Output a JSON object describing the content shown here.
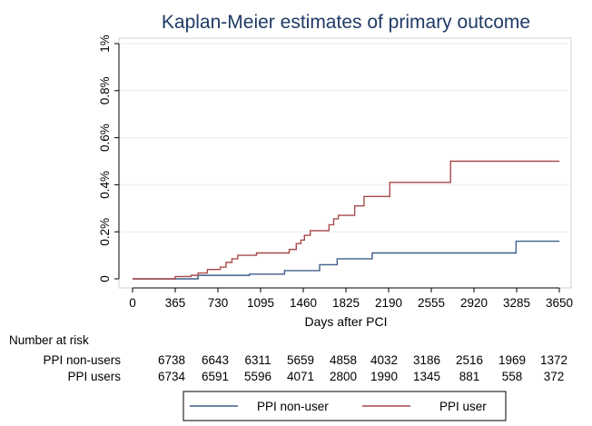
{
  "chart_data": {
    "type": "line",
    "title": "Kaplan-Meier estimates of primary outcome",
    "xlabel": "Days after PCI",
    "ylabel": "",
    "xlim": [
      0,
      3650
    ],
    "ylim": [
      0,
      1
    ],
    "x_ticks": [
      0,
      365,
      730,
      1095,
      1460,
      1825,
      2190,
      2555,
      2920,
      3285,
      3650
    ],
    "x_tick_labels": [
      "0",
      "365",
      "730",
      "1095",
      "1460",
      "1825",
      "2190",
      "2555",
      "2920",
      "3285",
      "3650"
    ],
    "y_ticks": [
      0,
      0.2,
      0.4,
      0.6,
      0.8,
      1.0
    ],
    "y_tick_labels": [
      "0",
      "0.2%",
      "0.4%",
      "0.6%",
      "0.8%",
      "1%"
    ],
    "grid": true,
    "series": [
      {
        "name": "PPI non-user",
        "color": "#3f5f8c",
        "steps": [
          [
            0,
            0
          ],
          [
            560,
            0.015
          ],
          [
            1000,
            0.02
          ],
          [
            1300,
            0.035
          ],
          [
            1600,
            0.06
          ],
          [
            1750,
            0.085
          ],
          [
            2050,
            0.11
          ],
          [
            3280,
            0.16
          ],
          [
            3650,
            0.16
          ]
        ]
      },
      {
        "name": "PPI user",
        "color": "#a84a4a",
        "steps": [
          [
            0,
            0
          ],
          [
            365,
            0.01
          ],
          [
            500,
            0.015
          ],
          [
            560,
            0.025
          ],
          [
            640,
            0.04
          ],
          [
            750,
            0.05
          ],
          [
            800,
            0.07
          ],
          [
            850,
            0.085
          ],
          [
            900,
            0.1
          ],
          [
            1060,
            0.11
          ],
          [
            1340,
            0.125
          ],
          [
            1400,
            0.15
          ],
          [
            1440,
            0.165
          ],
          [
            1470,
            0.185
          ],
          [
            1520,
            0.205
          ],
          [
            1680,
            0.23
          ],
          [
            1720,
            0.255
          ],
          [
            1760,
            0.27
          ],
          [
            1900,
            0.31
          ],
          [
            1980,
            0.35
          ],
          [
            2200,
            0.41
          ],
          [
            2720,
            0.5
          ],
          [
            3650,
            0.5
          ]
        ]
      }
    ],
    "legend": {
      "position": "bottom",
      "entries": [
        "PPI non-user",
        "PPI user"
      ]
    },
    "risk_table": {
      "header": "Number at risk",
      "rows": [
        {
          "label": "PPI non-users",
          "values": [
            "6738",
            "6643",
            "6311",
            "5659",
            "4858",
            "4032",
            "3186",
            "2516",
            "1969",
            "1372"
          ]
        },
        {
          "label": "PPI users",
          "values": [
            "6734",
            "6591",
            "5596",
            "4071",
            "2800",
            "1990",
            "1345",
            "881",
            "558",
            "372"
          ]
        }
      ]
    }
  }
}
